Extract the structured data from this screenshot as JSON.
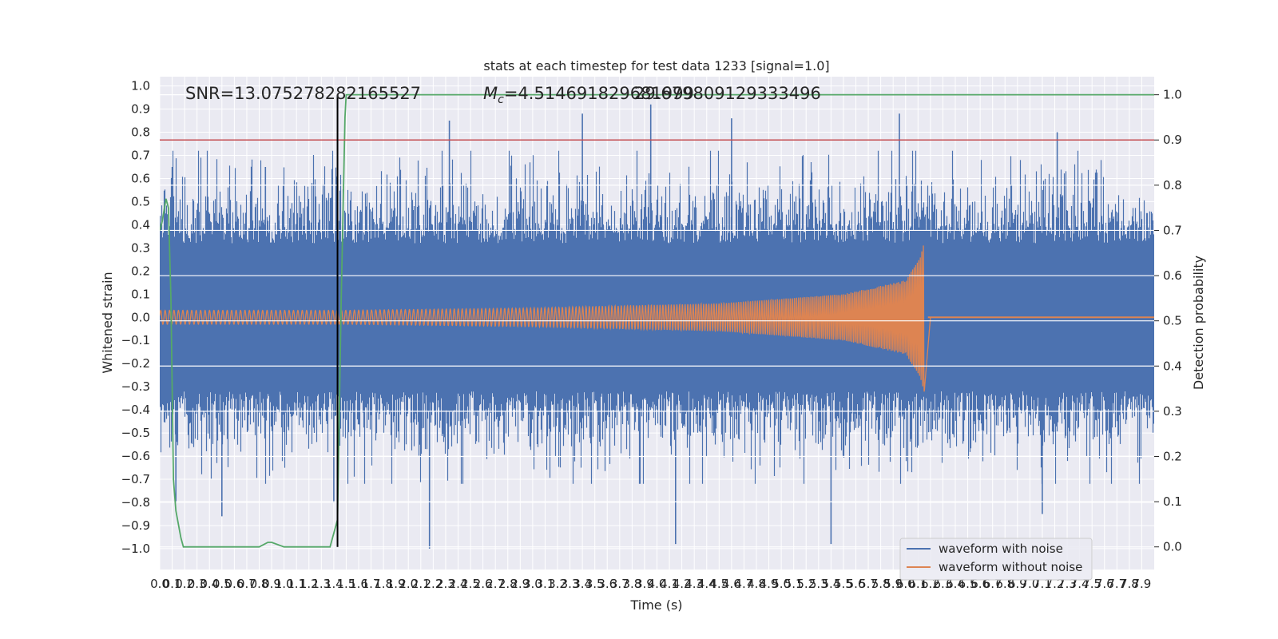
{
  "chart_data": {
    "type": "line",
    "title": "stats at each timestep for test data 1233 [signal=1.0]",
    "xlabel": "Time (s)",
    "ylabel": "Whitened strain",
    "y2label": "Detection probability",
    "xlim": [
      0,
      8.0
    ],
    "ylim": [
      -1.09,
      1.04
    ],
    "y2lim": [
      -0.05,
      1.04
    ],
    "xticks": [
      0.0,
      0.1,
      0.2,
      0.3,
      0.4,
      0.5,
      0.6,
      0.7,
      0.8,
      0.9,
      1.0,
      1.1,
      1.2,
      1.3,
      1.4,
      1.5,
      1.6,
      1.7,
      1.8,
      1.9,
      2.0,
      2.1,
      2.2,
      2.3,
      2.4,
      2.5,
      2.6,
      2.7,
      2.8,
      2.9,
      3.0,
      3.1,
      3.2,
      3.3,
      3.4,
      3.5,
      3.6,
      3.7,
      3.8,
      3.9,
      4.0,
      4.1,
      4.2,
      4.3,
      4.4,
      4.5,
      4.6,
      4.7,
      4.8,
      4.9,
      5.0,
      5.1,
      5.2,
      5.3,
      5.4,
      5.5,
      5.6,
      5.7,
      5.8,
      5.9,
      6.0,
      6.1,
      6.2,
      6.3,
      6.4,
      6.5,
      6.6,
      6.7,
      6.8,
      6.9,
      7.0,
      7.1,
      7.2,
      7.3,
      7.4,
      7.5,
      7.6,
      7.7,
      7.8,
      7.9
    ],
    "yticks": [
      "1.0",
      "0.9",
      "0.8",
      "0.7",
      "0.6",
      "0.5",
      "0.4",
      "0.3",
      "0.2",
      "0.1",
      "0.0",
      "−0.1",
      "−0.2",
      "−0.3",
      "−0.4",
      "−0.5",
      "−0.6",
      "−0.7",
      "−0.8",
      "−0.9",
      "−1.0"
    ],
    "y2ticks": [
      "1.0",
      "0.9",
      "0.8",
      "0.7",
      "0.6",
      "0.5",
      "0.4",
      "0.3",
      "0.2",
      "0.1",
      "0.0"
    ],
    "annotations": {
      "snr": "SNR=13.075278282165527",
      "mc_symbol": "M",
      "mc_sub": "c",
      "mc_value": "=4.514691829681999",
      "overlap": "29.679809129333496"
    },
    "threshold_y2": 0.9,
    "event_line_x": 1.43,
    "merger_time": 6.15,
    "series": [
      {
        "name": "waveform with noise",
        "color": "#4c72b0",
        "description": "noisy whitened strain, envelope roughly ±0.5 with spikes to ±1.0",
        "peak_spikes": [
          {
            "x": 0.1,
            "y": 0.65
          },
          {
            "x": 0.13,
            "y": -0.8
          },
          {
            "x": 0.5,
            "y": -0.86
          },
          {
            "x": 0.85,
            "y": 0.65
          },
          {
            "x": 1.4,
            "y": -0.8
          },
          {
            "x": 2.17,
            "y": -1.0
          },
          {
            "x": 2.33,
            "y": 0.85
          },
          {
            "x": 3.4,
            "y": 0.88
          },
          {
            "x": 3.95,
            "y": 0.92
          },
          {
            "x": 4.15,
            "y": -0.98
          },
          {
            "x": 4.6,
            "y": 0.86
          },
          {
            "x": 5.4,
            "y": -0.98
          },
          {
            "x": 5.95,
            "y": 0.88
          },
          {
            "x": 7.22,
            "y": 0.8
          },
          {
            "x": 7.1,
            "y": -0.85
          }
        ]
      },
      {
        "name": "waveform without noise",
        "color": "#dd8452",
        "description": "chirp signal, amplitude growing from 0.03 to 0.33 at merger near t=6.15 s, then ringdown to 0",
        "amplitude_envelope": [
          {
            "t": 0.0,
            "a": 0.03
          },
          {
            "t": 1.5,
            "a": 0.03
          },
          {
            "t": 3.0,
            "a": 0.04
          },
          {
            "t": 4.5,
            "a": 0.06
          },
          {
            "t": 5.5,
            "a": 0.1
          },
          {
            "t": 6.0,
            "a": 0.16
          },
          {
            "t": 6.12,
            "a": 0.26
          },
          {
            "t": 6.15,
            "a": 0.33
          },
          {
            "t": 6.2,
            "a": 0.0
          },
          {
            "t": 8.0,
            "a": 0.0
          }
        ]
      },
      {
        "name": "detection probability",
        "color": "#55a868",
        "axis": "right",
        "x": [
          0.0,
          0.02,
          0.05,
          0.07,
          0.09,
          0.11,
          0.13,
          0.17,
          0.19,
          0.3,
          0.5,
          0.7,
          0.8,
          0.87,
          0.9,
          1.0,
          1.2,
          1.37,
          1.43,
          1.46,
          1.49,
          1.5,
          1.52,
          8.0
        ],
        "y": [
          0.7,
          0.72,
          0.77,
          0.75,
          0.55,
          0.15,
          0.08,
          0.02,
          0.0,
          0.0,
          0.0,
          0.0,
          0.0,
          0.01,
          0.01,
          0.0,
          0.0,
          0.0,
          0.06,
          0.55,
          0.95,
          1.0,
          1.0,
          1.0
        ]
      },
      {
        "name": "threshold",
        "color": "#c44e52",
        "axis": "right",
        "value": 0.9
      }
    ],
    "legend": {
      "placement": "bottom-right",
      "entries": [
        {
          "label": "waveform with noise",
          "color": "#4c72b0"
        },
        {
          "label": "waveform without noise",
          "color": "#dd8452"
        }
      ]
    }
  }
}
